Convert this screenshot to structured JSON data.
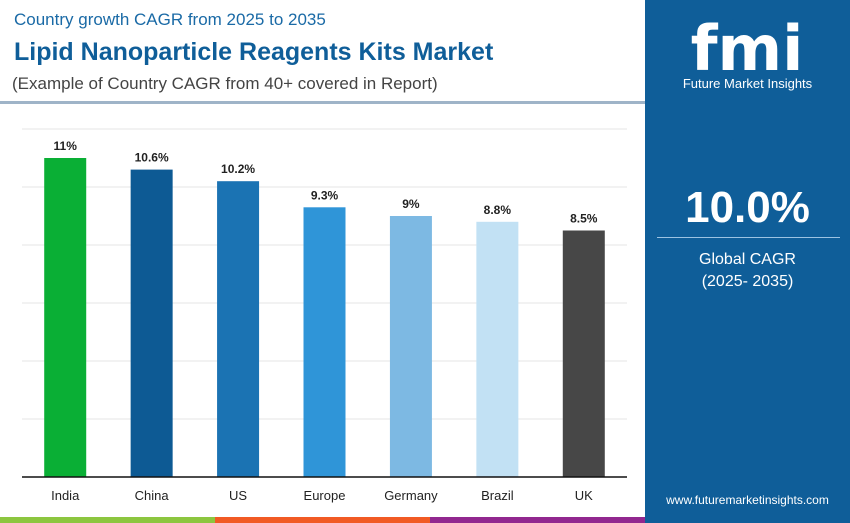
{
  "header": {
    "subtitle": "Country growth CAGR from 2025 to 2035",
    "title": "Lipid Nanoparticle Reagents Kits Market",
    "note": "(Example of Country CAGR from 40+ covered in Report)"
  },
  "sidebar": {
    "logo_text": "fmi",
    "brand": "Future Market Insights",
    "global_value": "10.0%",
    "global_label": "Global CAGR",
    "global_period": "(2025- 2035)",
    "url": "www.futuremarketinsights.com",
    "bg_color": "#0f5e99"
  },
  "chart_data": {
    "type": "bar",
    "categories": [
      "India",
      "China",
      "US",
      "Europe",
      "Germany",
      "Brazil",
      "UK"
    ],
    "values": [
      11,
      10.6,
      10.2,
      9.3,
      9,
      8.8,
      8.5
    ],
    "data_labels": [
      "11%",
      "10.6%",
      "10.2%",
      "9.3%",
      "9%",
      "8.8%",
      "8.5%"
    ],
    "colors": [
      "#0aaf35",
      "#0d5a94",
      "#1b73b3",
      "#2f95d8",
      "#7db9e3",
      "#c2e1f4",
      "#474747"
    ],
    "ylim": [
      0,
      12
    ],
    "grid": true,
    "ylabel": "",
    "xlabel": ""
  },
  "footer_colors": [
    "#8cc63f",
    "#f15a24",
    "#92278f"
  ]
}
